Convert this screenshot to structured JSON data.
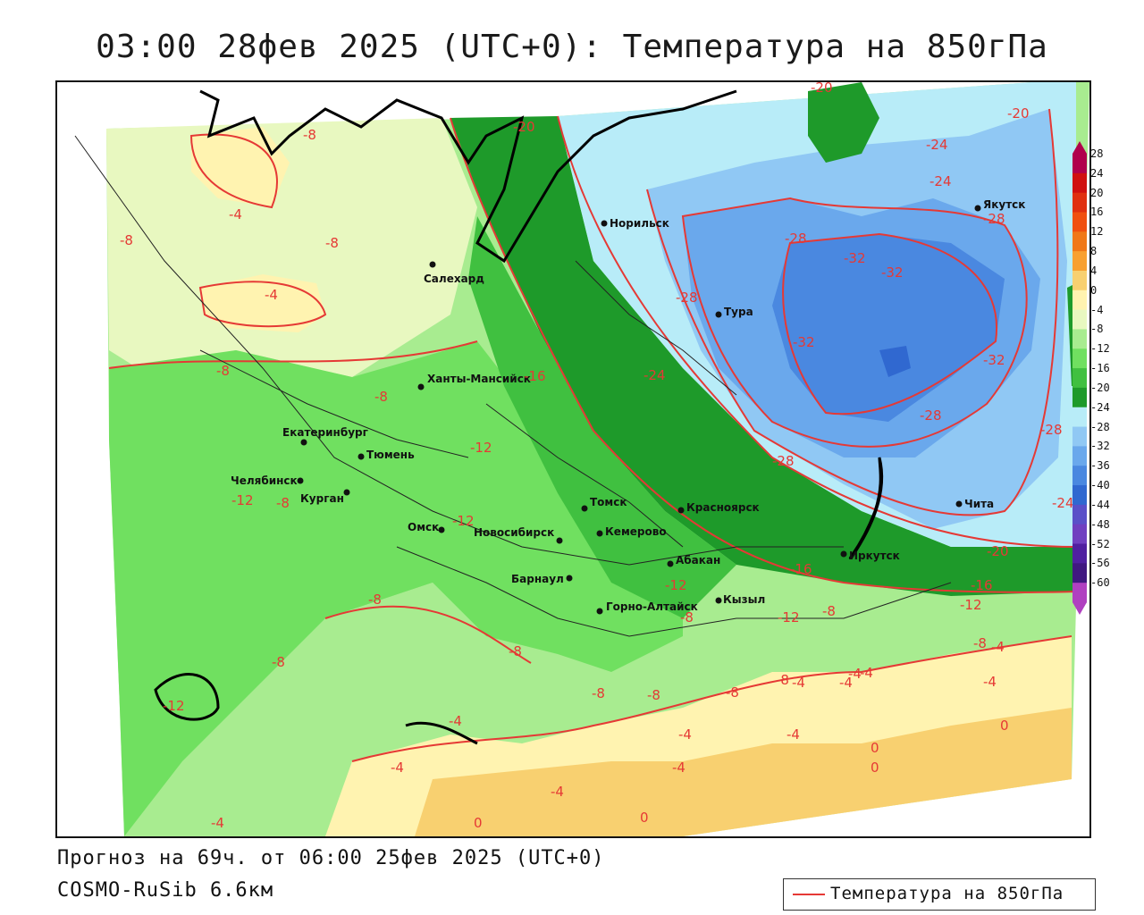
{
  "title": "03:00 28фев 2025 (UTC+0): Температура на 850гПа",
  "footer": {
    "forecast": "Прогноз на 69ч. от 06:00 25фев 2025 (UTC+0)",
    "model": "COSMO-RuSib 6.6км"
  },
  "legend": {
    "label": "Температура на 850гПа",
    "line_color": "#e53935"
  },
  "colorbar": {
    "labels": [
      "28",
      "24",
      "20",
      "16",
      "12",
      "8",
      "4",
      "0",
      "-4",
      "-8",
      "-12",
      "-16",
      "-20",
      "-24",
      "-28",
      "-32",
      "-36",
      "-40",
      "-44",
      "-48",
      "-52",
      "-56",
      "-60"
    ],
    "colors": [
      "#b0004c",
      "#d01010",
      "#e03010",
      "#f05010",
      "#f07818",
      "#f8a030",
      "#f8d070",
      "#fff3b0",
      "#e8f8c0",
      "#a8ec90",
      "#70e060",
      "#40c040",
      "#1e9a2a",
      "#b8ecf8",
      "#90c8f4",
      "#6aa8ec",
      "#4a88e0",
      "#3068d0",
      "#5a50c8",
      "#7040c0",
      "#5020a0",
      "#401880",
      "#b040c0"
    ]
  },
  "cities": [
    {
      "name": "Норильск"
    },
    {
      "name": "Якутск"
    },
    {
      "name": "Салехард"
    },
    {
      "name": "Тура"
    },
    {
      "name": "Ханты-Мансийск"
    },
    {
      "name": "Екатеринбург"
    },
    {
      "name": "Тюмень"
    },
    {
      "name": "Челябинск"
    },
    {
      "name": "Курган"
    },
    {
      "name": "Омск"
    },
    {
      "name": "Новосибирск"
    },
    {
      "name": "Томск"
    },
    {
      "name": "Кемерово"
    },
    {
      "name": "Красноярск"
    },
    {
      "name": "Барнаул"
    },
    {
      "name": "Абакан"
    },
    {
      "name": "Горно-Алтайск"
    },
    {
      "name": "Кызыл"
    },
    {
      "name": "Иркутск"
    },
    {
      "name": "Чита"
    }
  ],
  "contour_labels": [
    "-20",
    "-20",
    "-20",
    "-24",
    "-24",
    "-28",
    "-28",
    "-32",
    "-32",
    "-28",
    "-32",
    "-32",
    "-24",
    "-28",
    "-28",
    "-28",
    "-24",
    "-20",
    "-16",
    "-12",
    "-8",
    "-8",
    "-8",
    "-4",
    "-4",
    "-8",
    "-8",
    "-12",
    "-12",
    "-8",
    "-12",
    "-16",
    "-8",
    "-12",
    "-8",
    "-16",
    "-12",
    "-8",
    "-4",
    "-4",
    "-8",
    "-8",
    "-4",
    "-8",
    "-8",
    "-4",
    "-12",
    "-4",
    "-4",
    "-8",
    "-4",
    "-4",
    "-4",
    "0",
    "0",
    "0",
    "0",
    "-4",
    "0",
    "-4",
    "-4",
    "-8",
    "-4",
    "-8"
  ]
}
